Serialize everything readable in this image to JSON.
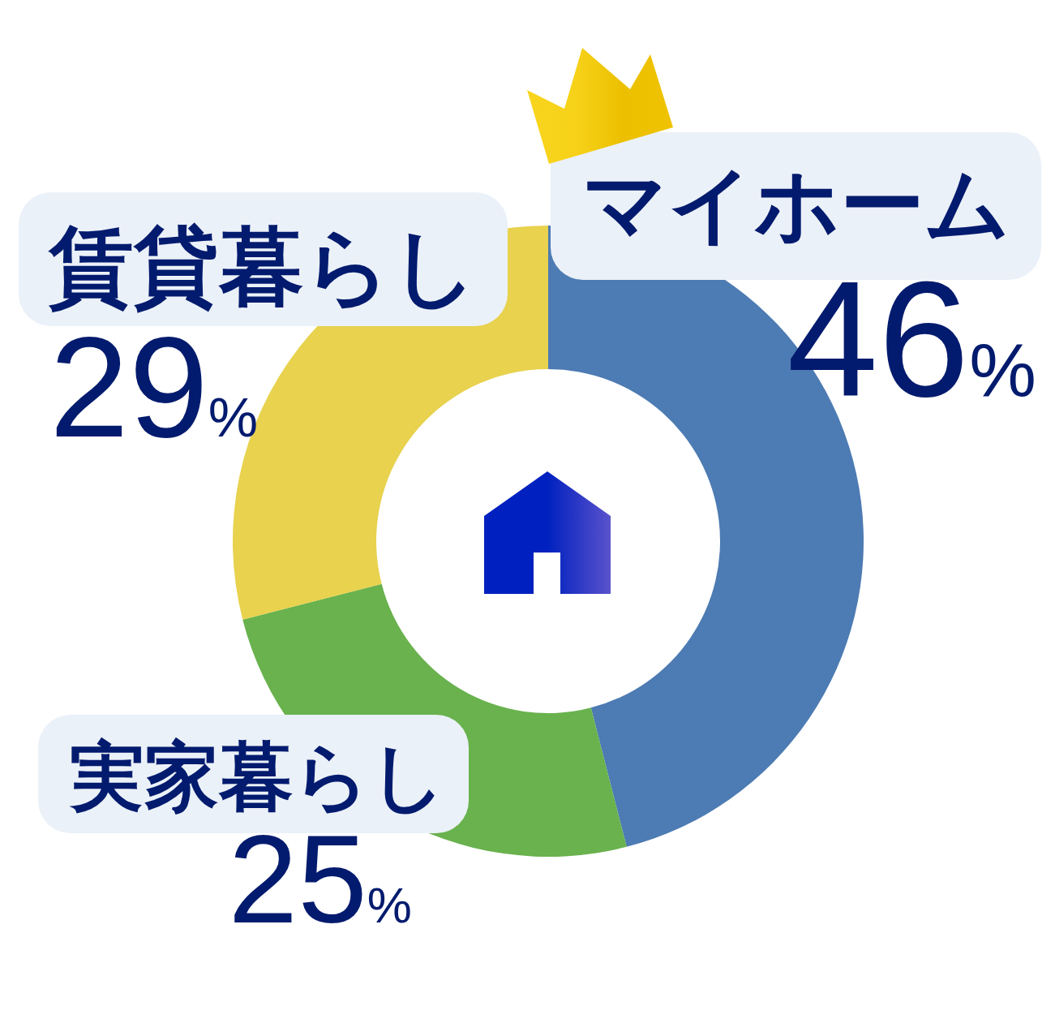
{
  "chart_data": {
    "type": "donut",
    "categories": [
      "マイホーム",
      "実家暮らし",
      "賃貸暮らし"
    ],
    "values": [
      46,
      25,
      29
    ],
    "colors": [
      "#4d7bb3",
      "#69b24e",
      "#e8d24e"
    ],
    "value_labels": [
      "46%",
      "25%",
      "29%"
    ]
  }
}
